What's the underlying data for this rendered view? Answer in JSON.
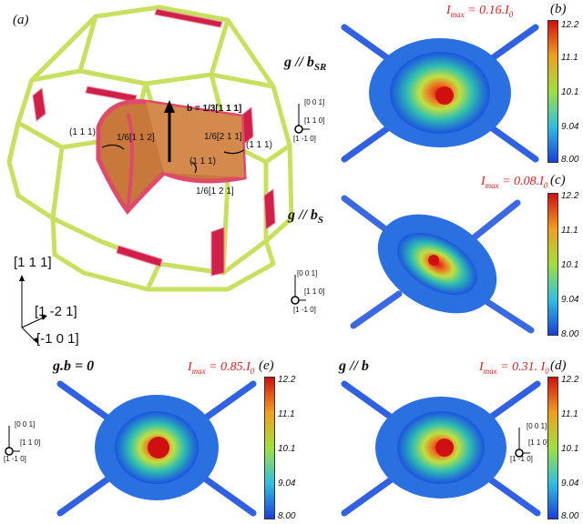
{
  "panel_a": {
    "label": "(a)",
    "burgers": "b = 1/3[1 1 1]",
    "partial_112": "1/6[1 1 2]",
    "partial_211": "1/6[2 1 1]",
    "partial_121": "1/6[1 2 1]",
    "plane_1": "(1 1 1)",
    "plane_2": "(1 1 1)",
    "plane_3": "(1 1 1)",
    "dir_111": "[1 1 1]",
    "dir_m121": "[1 -2 1]",
    "dir_m101": "[-1 0 1]"
  },
  "maps": [
    {
      "id": "b",
      "label": "(b)",
      "imax": "I",
      "imax_sub": "max",
      "imax_val": "= 0.16.I",
      "imax_tail": "0",
      "g_label": "g // b",
      "g_sub": "SR"
    },
    {
      "id": "c",
      "label": "(c)",
      "imax": "I",
      "imax_sub": "max",
      "imax_val": "= 0.08.I",
      "imax_tail": "0",
      "g_label": "g // b",
      "g_sub": "S"
    },
    {
      "id": "e",
      "label": "(e)",
      "imax": "I",
      "imax_sub": "max",
      "imax_val": "= 0.85.I",
      "imax_tail": "0",
      "g_label": "g.b = 0",
      "g_sub": ""
    },
    {
      "id": "d",
      "label": "(d)",
      "imax": "I",
      "imax_sub": "max",
      "imax_val": "= 0.31. I",
      "imax_tail": "0",
      "g_label": "g // b",
      "g_sub": ""
    }
  ],
  "colorbar_ticks": [
    "12.2",
    "11.1",
    "10.1",
    "9.04",
    "8.00"
  ],
  "axes": {
    "z": "[0 0 1]",
    "x": "[1 1 0]",
    "o": "[1 -1 0]"
  },
  "colors": {
    "red": "#e02020",
    "hot": "#d01010",
    "cold": "#1a3fd8",
    "frame": "#c8e060",
    "stack": "#d0204a"
  }
}
